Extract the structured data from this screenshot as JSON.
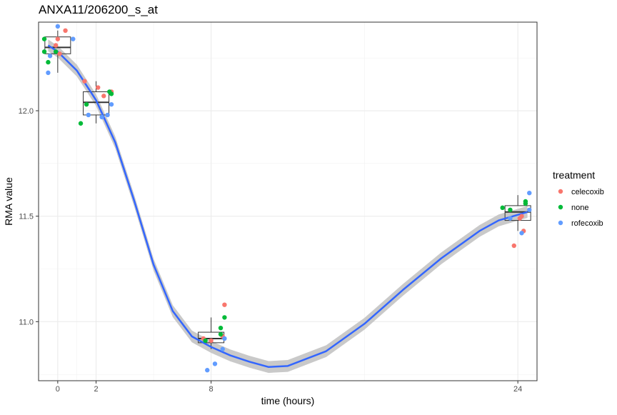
{
  "chart_data": {
    "type": "scatter",
    "title": "ANXA11/206200_s_at",
    "xlabel": "time (hours)",
    "ylabel": "RMA value",
    "x_ticks": [
      0,
      2,
      8,
      24
    ],
    "y_ticks": [
      11.0,
      11.5,
      12.0
    ],
    "y_tick_labels": [
      "11.0",
      "11.5",
      "12.0"
    ],
    "xlim": [
      -1.0,
      25.0
    ],
    "ylim": [
      10.72,
      12.42
    ],
    "grid": true,
    "legend": {
      "title": "treatment",
      "position": "right"
    },
    "series": [
      {
        "name": "celecoxib",
        "color": "#F8766D",
        "points": [
          {
            "x": -0.1,
            "y": 12.31
          },
          {
            "x": 0.0,
            "y": 12.34
          },
          {
            "x": 0.1,
            "y": 12.27
          },
          {
            "x": 0.4,
            "y": 12.38
          },
          {
            "x": 1.4,
            "y": 12.14
          },
          {
            "x": 2.1,
            "y": 12.11
          },
          {
            "x": 2.4,
            "y": 12.07
          },
          {
            "x": 2.8,
            "y": 12.09
          },
          {
            "x": 7.6,
            "y": 10.92
          },
          {
            "x": 8.0,
            "y": 10.91
          },
          {
            "x": 8.6,
            "y": 10.93
          },
          {
            "x": 8.7,
            "y": 11.08
          },
          {
            "x": 23.8,
            "y": 11.36
          },
          {
            "x": 24.1,
            "y": 11.49
          },
          {
            "x": 24.2,
            "y": 11.5
          },
          {
            "x": 24.3,
            "y": 11.43
          }
        ]
      },
      {
        "name": "none",
        "color": "#00BA38",
        "points": [
          {
            "x": -0.7,
            "y": 12.34
          },
          {
            "x": -0.7,
            "y": 12.28
          },
          {
            "x": -0.5,
            "y": 12.23
          },
          {
            "x": -0.1,
            "y": 12.28
          },
          {
            "x": 1.2,
            "y": 11.94
          },
          {
            "x": 1.5,
            "y": 12.03
          },
          {
            "x": 2.7,
            "y": 12.09
          },
          {
            "x": 2.8,
            "y": 12.08
          },
          {
            "x": 7.7,
            "y": 10.91
          },
          {
            "x": 8.5,
            "y": 10.97
          },
          {
            "x": 8.5,
            "y": 10.94
          },
          {
            "x": 8.7,
            "y": 11.02
          },
          {
            "x": 23.2,
            "y": 11.54
          },
          {
            "x": 23.6,
            "y": 11.53
          },
          {
            "x": 24.4,
            "y": 11.57
          },
          {
            "x": 24.4,
            "y": 11.56
          }
        ]
      },
      {
        "name": "rofecoxib",
        "color": "#619CFF",
        "points": [
          {
            "x": -0.5,
            "y": 12.18
          },
          {
            "x": -0.4,
            "y": 12.26
          },
          {
            "x": 0.0,
            "y": 12.4
          },
          {
            "x": 0.8,
            "y": 12.34
          },
          {
            "x": 1.6,
            "y": 11.98
          },
          {
            "x": 2.3,
            "y": 11.97
          },
          {
            "x": 2.6,
            "y": 11.98
          },
          {
            "x": 2.8,
            "y": 12.03
          },
          {
            "x": 7.8,
            "y": 10.77
          },
          {
            "x": 8.2,
            "y": 10.8
          },
          {
            "x": 8.6,
            "y": 10.87
          },
          {
            "x": 8.7,
            "y": 10.92
          },
          {
            "x": 23.6,
            "y": 11.49
          },
          {
            "x": 24.2,
            "y": 11.42
          },
          {
            "x": 24.6,
            "y": 11.53
          },
          {
            "x": 24.6,
            "y": 11.61
          }
        ]
      }
    ],
    "boxplots": [
      {
        "x": 0,
        "min": 12.18,
        "q1": 12.27,
        "median": 12.3,
        "q3": 12.35,
        "max": 12.38
      },
      {
        "x": 2,
        "min": 11.94,
        "q1": 11.98,
        "median": 12.04,
        "q3": 12.09,
        "max": 12.14
      },
      {
        "x": 8,
        "min": 10.87,
        "q1": 10.9,
        "median": 10.92,
        "q3": 10.95,
        "max": 11.02
      },
      {
        "x": 24,
        "min": 11.43,
        "q1": 11.48,
        "median": 11.52,
        "q3": 11.55,
        "max": 11.6
      }
    ],
    "smooth": {
      "color": "#3366FF",
      "points": [
        {
          "x": -0.5,
          "y": 12.31
        },
        {
          "x": 0,
          "y": 12.28
        },
        {
          "x": 1,
          "y": 12.19
        },
        {
          "x": 2,
          "y": 12.05
        },
        {
          "x": 3,
          "y": 11.85
        },
        {
          "x": 4,
          "y": 11.57
        },
        {
          "x": 5,
          "y": 11.27
        },
        {
          "x": 6,
          "y": 11.05
        },
        {
          "x": 7,
          "y": 10.93
        },
        {
          "x": 8,
          "y": 10.88
        },
        {
          "x": 9,
          "y": 10.84
        },
        {
          "x": 10,
          "y": 10.81
        },
        {
          "x": 11,
          "y": 10.785
        },
        {
          "x": 12,
          "y": 10.79
        },
        {
          "x": 14,
          "y": 10.86
        },
        {
          "x": 16,
          "y": 10.99
        },
        {
          "x": 18,
          "y": 11.15
        },
        {
          "x": 20,
          "y": 11.3
        },
        {
          "x": 22,
          "y": 11.43
        },
        {
          "x": 23,
          "y": 11.48
        },
        {
          "x": 24.5,
          "y": 11.52
        }
      ],
      "band_color": "#C9C9C9"
    }
  }
}
